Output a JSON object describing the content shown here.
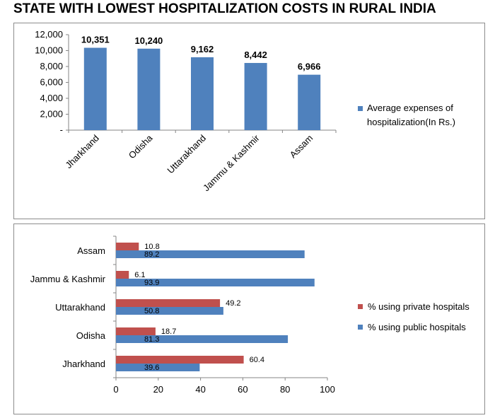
{
  "page": {
    "title": "STATE WITH LOWEST HOSPITALIZATION COSTS IN RURAL INDIA"
  },
  "colors": {
    "blue": "#4f81bd",
    "red": "#c0504d",
    "axis": "#868686"
  },
  "chart_data": [
    {
      "type": "bar",
      "title": "",
      "categories": [
        "Jharkhand",
        "Odisha",
        "Uttarakhand",
        "Jammu & Kashmir",
        "Assam"
      ],
      "series": [
        {
          "name": "Average expenses  of hospitalization(In Rs.)",
          "legend_lines": [
            "Average expenses  of",
            "hospitalization(In Rs.)"
          ],
          "values": [
            10351,
            10240,
            9162,
            8442,
            6966
          ],
          "labels": [
            "10,351",
            "10,240",
            "9,162",
            "8,442",
            "6,966"
          ]
        }
      ],
      "y_ticks": [
        "-",
        "2,000",
        "4,000",
        "6,000",
        "8,000",
        "10,000",
        "12,000"
      ],
      "y_tick_values": [
        0,
        2000,
        4000,
        6000,
        8000,
        10000,
        12000
      ],
      "ylim": [
        0,
        12000
      ],
      "xlabel": "",
      "ylabel": "",
      "legend": "right",
      "grid": false
    },
    {
      "type": "bar",
      "orientation": "horizontal",
      "title": "",
      "categories": [
        "Jharkhand",
        "Odisha",
        "Uttarakhand",
        "Jammu & Kashmir",
        "Assam"
      ],
      "series": [
        {
          "name": "% using public hospitals",
          "values": [
            39.6,
            81.3,
            50.8,
            93.9,
            89.2
          ],
          "labels": [
            "39.6",
            "81.3",
            "50.8",
            "93.9",
            "89.2"
          ]
        },
        {
          "name": "% using private hospitals",
          "values": [
            60.4,
            18.7,
            49.2,
            6.1,
            10.8
          ],
          "labels": [
            "60.4",
            "18.7",
            "49.2",
            "6.1",
            "10.8"
          ]
        }
      ],
      "x_ticks": [
        "0",
        "20",
        "40",
        "60",
        "80",
        "100"
      ],
      "x_tick_values": [
        0,
        20,
        40,
        60,
        80,
        100
      ],
      "xlim": [
        0,
        100
      ],
      "xlabel": "",
      "ylabel": "",
      "legend": "right",
      "grid": false
    }
  ]
}
